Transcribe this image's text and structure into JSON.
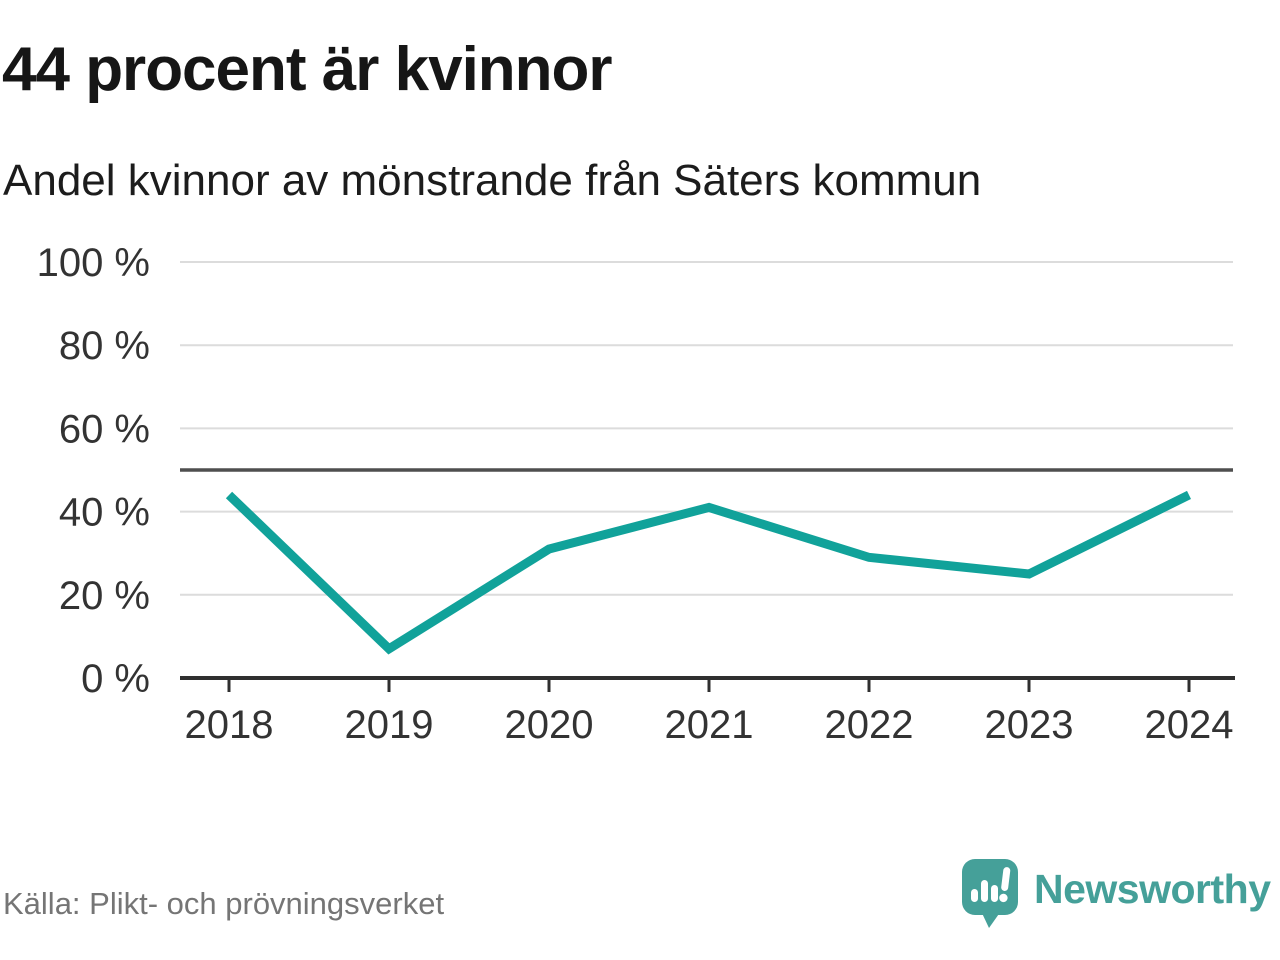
{
  "header": {
    "title": "44 procent är kvinnor",
    "subtitle": "Andel kvinnor av mönstrande från Säters kommun"
  },
  "chart_data": {
    "type": "line",
    "title": "44 procent är kvinnor",
    "subtitle": "Andel kvinnor av mönstrande från Säters kommun",
    "categories": [
      "2018",
      "2019",
      "2020",
      "2021",
      "2022",
      "2023",
      "2024"
    ],
    "series": [
      {
        "name": "Andel kvinnor av mönstrande",
        "values": [
          44,
          7,
          31,
          41,
          29,
          25,
          44
        ]
      }
    ],
    "unit": "%",
    "ylim": [
      0,
      100
    ],
    "yticks": [
      0,
      20,
      40,
      60,
      80,
      100
    ],
    "ytick_suffix": " %",
    "reference_line": 50,
    "grid": true,
    "legend": "none",
    "line_color": "#11a29a"
  },
  "footer": {
    "source": "Källa: Plikt- och prövningsverket",
    "brand": "Newsworthy"
  },
  "colors": {
    "accent_teal": "#11a29a",
    "brand_teal": "#45a099",
    "grid": "#dcdcdc",
    "reference_line": "#4f4f4f",
    "axis": "#2f2f2f",
    "tick_text": "#333333",
    "source_text": "#757575",
    "background": "#ffffff"
  }
}
